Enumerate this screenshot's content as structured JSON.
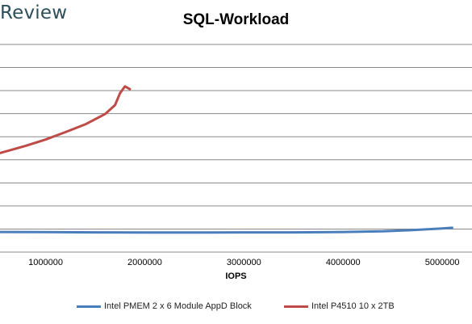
{
  "brand": "Review",
  "chart_data": {
    "type": "line",
    "title": "SQL-Workload",
    "xlabel": "IOPS",
    "ylabel": "",
    "x_ticks": [
      "1000000",
      "2000000",
      "3000000",
      "4000000",
      "5000000"
    ],
    "xlim": [
      540000,
      5300000
    ],
    "ylim": [
      0,
      10
    ],
    "y_gridlines": 9,
    "grid": true,
    "legend_position": "bottom",
    "series": [
      {
        "name": "Intel PMEM 2 x 6 Module AppD Block",
        "color": "#4a7ebb",
        "points": [
          [
            540000,
            0.97
          ],
          [
            1000000,
            0.96
          ],
          [
            1500000,
            0.95
          ],
          [
            2000000,
            0.94
          ],
          [
            2500000,
            0.94
          ],
          [
            3000000,
            0.95
          ],
          [
            3500000,
            0.95
          ],
          [
            4000000,
            0.97
          ],
          [
            4400000,
            1.0
          ],
          [
            4700000,
            1.06
          ],
          [
            5000000,
            1.14
          ],
          [
            5100000,
            1.17
          ]
        ]
      },
      {
        "name": "Intel P4510 10 x 2TB",
        "color": "#be4b48",
        "points": [
          [
            540000,
            4.77
          ],
          [
            800000,
            5.12
          ],
          [
            1000000,
            5.42
          ],
          [
            1200000,
            5.78
          ],
          [
            1400000,
            6.15
          ],
          [
            1600000,
            6.65
          ],
          [
            1700000,
            7.08
          ],
          [
            1750000,
            7.65
          ],
          [
            1800000,
            7.98
          ],
          [
            1850000,
            7.85
          ]
        ]
      }
    ]
  }
}
